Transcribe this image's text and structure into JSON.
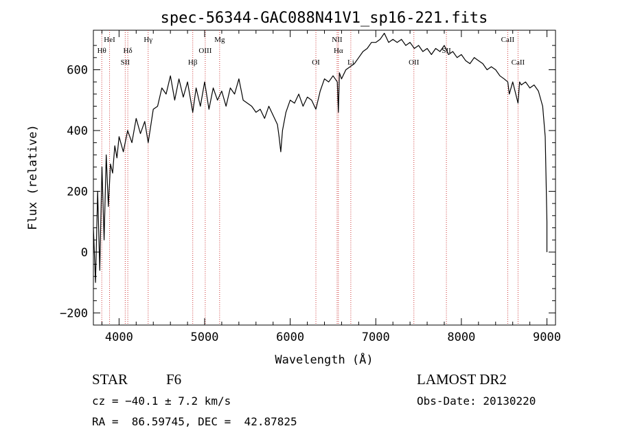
{
  "chart_data": {
    "type": "line",
    "title": "spec-56344-GAC088N41V1_sp16-221.fits",
    "xlabel": "Wavelength (Å)",
    "ylabel": "Flux (relative)",
    "xlim": [
      3700,
      9100
    ],
    "ylim": [
      -240,
      730
    ],
    "x_ticks": [
      4000,
      5000,
      6000,
      7000,
      8000,
      9000
    ],
    "x_tick_labels": [
      "4000",
      "5000",
      "6000",
      "7000",
      "8000",
      "9000"
    ],
    "y_ticks": [
      -200,
      0,
      200,
      400,
      600
    ],
    "y_tick_labels": [
      "−200",
      "0",
      "200",
      "400",
      "600"
    ],
    "grid": false,
    "line_color": "#000000",
    "marker_color": "#cc3333",
    "series": [
      {
        "x": [
          3700,
          3725,
          3750,
          3775,
          3800,
          3825,
          3850,
          3875,
          3900,
          3925,
          3950,
          3975,
          4000,
          4050,
          4100,
          4150,
          4200,
          4250,
          4300,
          4340,
          4400,
          4450,
          4500,
          4550,
          4600,
          4650,
          4700,
          4750,
          4800,
          4861,
          4900,
          4950,
          5000,
          5050,
          5100,
          5150,
          5200,
          5250,
          5300,
          5350,
          5400,
          5450,
          5500,
          5550,
          5600,
          5650,
          5700,
          5750,
          5800,
          5850,
          5870,
          5890,
          5910,
          5950,
          6000,
          6050,
          6100,
          6150,
          6200,
          6250,
          6300,
          6350,
          6400,
          6450,
          6500,
          6550,
          6563,
          6575,
          6600,
          6650,
          6700,
          6750,
          6800,
          6850,
          6900,
          6950,
          7000,
          7050,
          7100,
          7150,
          7200,
          7250,
          7300,
          7350,
          7400,
          7450,
          7500,
          7550,
          7600,
          7650,
          7700,
          7750,
          7800,
          7850,
          7900,
          7950,
          8000,
          8050,
          8100,
          8150,
          8200,
          8250,
          8300,
          8350,
          8400,
          8450,
          8500,
          8542,
          8560,
          8600,
          8662,
          8680,
          8700,
          8750,
          8800,
          8850,
          8900,
          8950,
          8980,
          9000,
          9000
        ],
        "y": [
          80,
          -100,
          200,
          -60,
          280,
          40,
          320,
          150,
          290,
          260,
          350,
          310,
          380,
          330,
          400,
          360,
          440,
          390,
          430,
          360,
          470,
          480,
          540,
          520,
          580,
          500,
          570,
          510,
          560,
          460,
          540,
          480,
          560,
          470,
          540,
          500,
          530,
          480,
          540,
          520,
          570,
          500,
          490,
          480,
          460,
          470,
          440,
          480,
          450,
          420,
          380,
          330,
          400,
          460,
          500,
          490,
          520,
          480,
          510,
          500,
          470,
          530,
          570,
          560,
          580,
          560,
          460,
          590,
          570,
          600,
          610,
          620,
          640,
          660,
          670,
          690,
          690,
          700,
          720,
          690,
          700,
          690,
          700,
          680,
          690,
          670,
          680,
          660,
          670,
          650,
          670,
          660,
          680,
          650,
          660,
          640,
          650,
          630,
          620,
          640,
          630,
          620,
          600,
          610,
          600,
          580,
          570,
          560,
          520,
          560,
          490,
          560,
          550,
          560,
          540,
          550,
          530,
          480,
          380,
          100,
          0
        ]
      }
    ],
    "lines": [
      {
        "x": 3798,
        "label": "Hθ",
        "row": 2
      },
      {
        "x": 3889,
        "label": "HeI",
        "row": 1
      },
      {
        "x": 4072,
        "label": "SII",
        "row": 3
      },
      {
        "x": 4102,
        "label": "Hδ",
        "row": 2
      },
      {
        "x": 4340,
        "label": "Hγ",
        "row": 1
      },
      {
        "x": 4861,
        "label": "Hβ",
        "row": 3
      },
      {
        "x": 5007,
        "label": "OIII",
        "row": 2
      },
      {
        "x": 5175,
        "label": "Mg",
        "row": 1
      },
      {
        "x": 6300,
        "label": "OI",
        "row": 3
      },
      {
        "x": 6548,
        "label": "NII",
        "row": 1
      },
      {
        "x": 6563,
        "label": "Hα",
        "row": 2
      },
      {
        "x": 6708,
        "label": "Li",
        "row": 3
      },
      {
        "x": 7445,
        "label": "OII",
        "row": 3
      },
      {
        "x": 7825,
        "label": "SII",
        "row": 2
      },
      {
        "x": 8542,
        "label": "CaII",
        "row": 1
      },
      {
        "x": 8662,
        "label": "CaII",
        "row": 3
      }
    ]
  },
  "info": {
    "object_class": "STAR",
    "subclass": "F6",
    "redshift": "cz = −40.1 ± 7.2 km/s",
    "coords": "RA =  86.59745, DEC =  42.87825",
    "survey": "LAMOST DR2",
    "obs_date": "Obs-Date: 20130220"
  }
}
